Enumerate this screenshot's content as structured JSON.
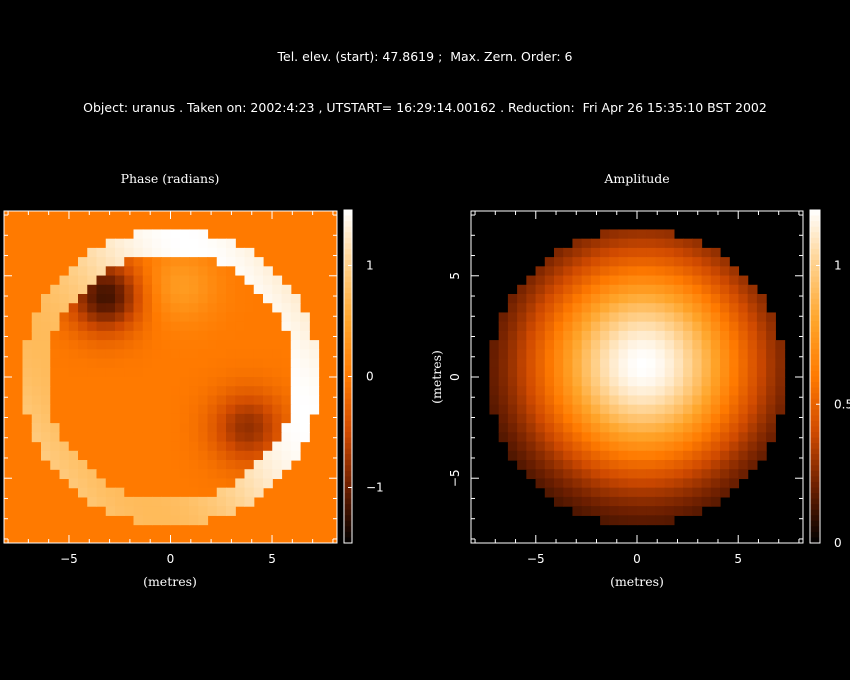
{
  "header": {
    "line1": "Tel. elev. (start): 47.8619 ;  Max. Zern. Order: 6",
    "line2": "Object: uranus . Taken on: 2002:4:23 , UTSTART= 16:29:14.00162 . Reduction:  Fri Apr 26 15:35:10 BST 2002"
  },
  "chart_data": [
    {
      "type": "heatmap",
      "title": "Phase (radians)",
      "xlabel": "(metres)",
      "ylabel": "",
      "xlim": [
        -8.2,
        8.2
      ],
      "ylim": [
        -8.2,
        8.2
      ],
      "xticks": [
        -5,
        0,
        5
      ],
      "xtick_labels": [
        "−5",
        "0",
        "5"
      ],
      "yticks": [],
      "aperture_radius": 7.3,
      "background_value": 0.0,
      "colorbar": {
        "range": [
          -1.5,
          1.5
        ],
        "ticks": [
          1,
          0,
          -1
        ],
        "tick_labels": [
          "1",
          "0",
          "−1"
        ]
      },
      "features": [
        {
          "type": "rim",
          "value": 1.5,
          "note": "bright edge around aperture"
        },
        {
          "type": "minimum",
          "x": -3.2,
          "y": 4.0,
          "value": -1.2
        },
        {
          "type": "minimum",
          "x": 3.8,
          "y": -2.5,
          "value": -0.8
        },
        {
          "type": "maximum",
          "x": 0.5,
          "y": 4.5,
          "value": 0.4
        }
      ]
    },
    {
      "type": "heatmap",
      "title": "Amplitude",
      "xlabel": "(metres)",
      "ylabel": "(metres)",
      "xlim": [
        -8.2,
        8.2
      ],
      "ylim": [
        -8.2,
        8.2
      ],
      "xticks": [
        -5,
        0,
        5
      ],
      "xtick_labels": [
        "−5",
        "0",
        "5"
      ],
      "yticks": [
        5,
        0,
        -5
      ],
      "ytick_labels": [
        "5",
        "0",
        "−5"
      ],
      "aperture_radius": 7.3,
      "background_value": 0.0,
      "peak": {
        "x": 0.3,
        "y": 0.6,
        "value": 1.2
      },
      "colorbar": {
        "range": [
          0,
          1.2
        ],
        "ticks": [
          1,
          0.5,
          0
        ],
        "tick_labels": [
          "1",
          "0.5",
          "0"
        ]
      }
    }
  ],
  "colormap": [
    "#000000",
    "#6b1e00",
    "#d04a00",
    "#ff7a00",
    "#ffa52a",
    "#ffd08a",
    "#ffffff"
  ]
}
